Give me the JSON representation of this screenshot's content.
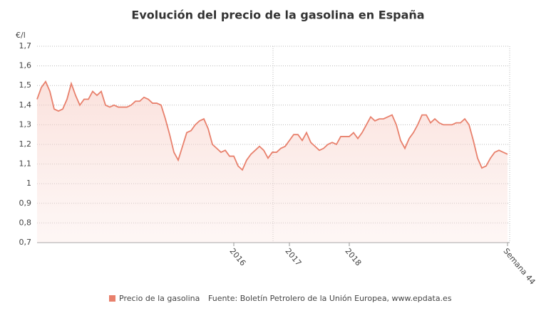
{
  "chart_data": {
    "type": "line",
    "title": "Evolución del precio de la gasolina en España",
    "y_label": "€/l",
    "source": "Fuente: Boletín Petrolero de la Unión Europea, www.epdata.es",
    "categories": [
      null,
      null,
      null,
      null,
      null,
      null,
      null,
      null,
      null,
      null,
      null,
      null,
      null,
      null,
      null,
      null,
      null,
      null,
      null,
      null,
      null,
      null,
      null,
      null,
      null,
      null,
      null,
      null,
      null,
      null,
      null,
      null,
      null,
      null,
      null,
      null,
      null,
      null,
      null,
      null,
      null,
      null,
      null,
      null,
      null,
      null,
      "2016",
      null,
      null,
      null,
      null,
      null,
      null,
      null,
      null,
      null,
      null,
      null,
      null,
      "2017",
      null,
      null,
      null,
      null,
      null,
      null,
      null,
      null,
      null,
      null,
      null,
      null,
      null,
      "2018",
      null,
      null,
      null,
      null,
      null,
      null,
      null,
      null,
      null,
      null,
      null,
      null,
      null,
      null,
      null,
      null,
      null,
      null,
      null,
      null,
      null,
      null,
      null,
      null,
      null,
      null,
      null,
      null,
      null,
      null,
      null,
      null,
      null,
      null,
      null,
      null,
      "Semana 44"
    ],
    "series": [
      {
        "name": "Precio de la gasolina",
        "color": "#e8806c",
        "values": [
          1.43,
          1.49,
          1.52,
          1.47,
          1.38,
          1.37,
          1.38,
          1.43,
          1.51,
          1.45,
          1.4,
          1.43,
          1.43,
          1.47,
          1.45,
          1.47,
          1.4,
          1.39,
          1.4,
          1.39,
          1.39,
          1.39,
          1.4,
          1.42,
          1.42,
          1.44,
          1.43,
          1.41,
          1.41,
          1.4,
          1.33,
          1.25,
          1.16,
          1.12,
          1.19,
          1.26,
          1.27,
          1.3,
          1.32,
          1.33,
          1.28,
          1.2,
          1.18,
          1.16,
          1.17,
          1.14,
          1.14,
          1.09,
          1.07,
          1.12,
          1.15,
          1.17,
          1.19,
          1.17,
          1.13,
          1.16,
          1.16,
          1.18,
          1.19,
          1.22,
          1.25,
          1.25,
          1.22,
          1.26,
          1.21,
          1.19,
          1.17,
          1.18,
          1.2,
          1.21,
          1.2,
          1.24,
          1.24,
          1.24,
          1.26,
          1.23,
          1.26,
          1.3,
          1.34,
          1.32,
          1.33,
          1.33,
          1.34,
          1.35,
          1.3,
          1.22,
          1.18,
          1.23,
          1.26,
          1.3,
          1.35,
          1.35,
          1.31,
          1.33,
          1.31,
          1.3,
          1.3,
          1.3,
          1.31,
          1.31,
          1.33,
          1.3,
          1.22,
          1.13,
          1.08,
          1.09,
          1.13,
          1.16,
          1.17,
          1.16,
          1.15
        ]
      }
    ],
    "ylim": [
      0.7,
      1.7
    ],
    "yticks": [
      {
        "value": 0.7,
        "label": "0,7"
      },
      {
        "value": 0.8,
        "label": "0,8"
      },
      {
        "value": 0.9,
        "label": "0,9"
      },
      1,
      {
        "value": 1.1,
        "label": "1,1"
      },
      {
        "value": 1.2,
        "label": "1,2"
      },
      {
        "value": 1.3,
        "label": "1,3"
      },
      {
        "value": 1.4,
        "label": "1,4"
      },
      {
        "value": 1.5,
        "label": "1,5"
      },
      {
        "value": 1.6,
        "label": "1,6"
      },
      {
        "value": 1.7,
        "label": "1,7"
      }
    ],
    "grid": true
  }
}
